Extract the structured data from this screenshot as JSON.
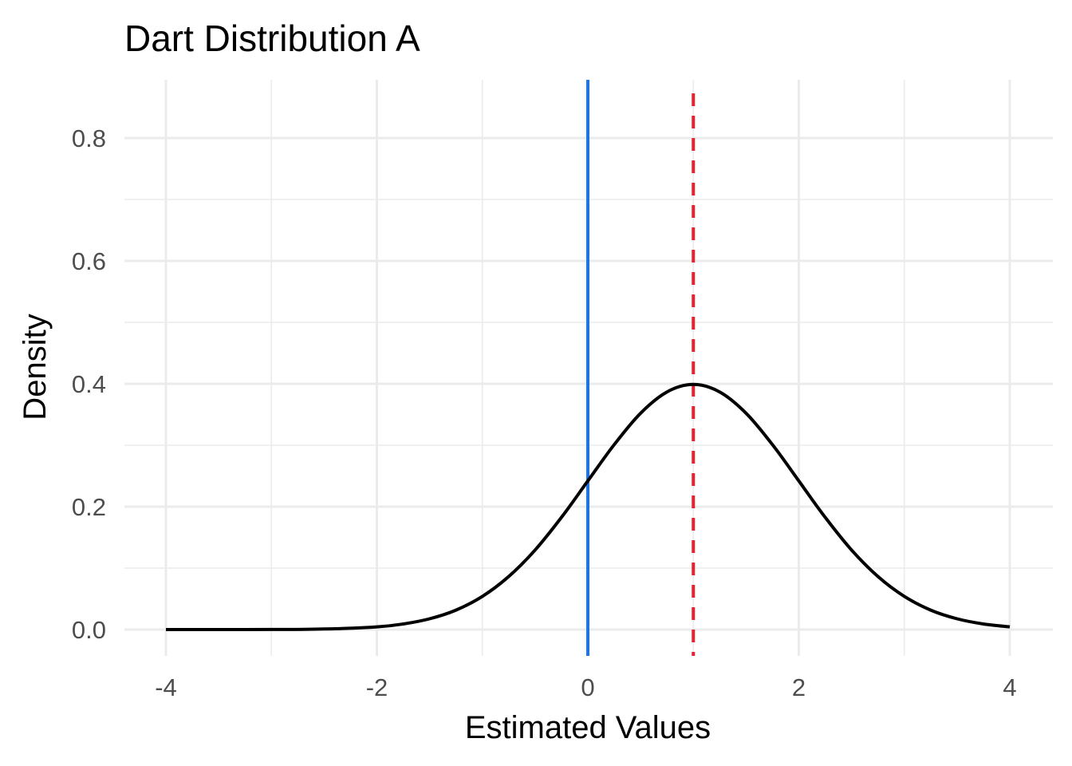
{
  "chart_data": {
    "type": "line",
    "title": "Dart Distribution A",
    "xlabel": "Estimated Values",
    "ylabel": "Density",
    "xlim": [
      -4,
      4
    ],
    "ylim": [
      0,
      0.8
    ],
    "x_ticks": [
      -4,
      -2,
      0,
      2,
      4
    ],
    "x_tick_labels": [
      "-4",
      "-2",
      "0",
      "2",
      "4"
    ],
    "x_minor_ticks": [
      -3,
      -1,
      1,
      3
    ],
    "y_ticks": [
      0,
      0.2,
      0.4,
      0.6,
      0.8
    ],
    "y_tick_labels": [
      "0.0",
      "0.2",
      "0.4",
      "0.6",
      "0.8"
    ],
    "y_minor_ticks": [
      0.1,
      0.3,
      0.5,
      0.7
    ],
    "grid": true,
    "series": [
      {
        "color": "#000000",
        "x": [
          -4,
          -3.5,
          -3,
          -2.5,
          -2,
          -1.75,
          -1.5,
          -1.25,
          -1,
          -0.75,
          -0.5,
          -0.25,
          0,
          0.25,
          0.5,
          0.75,
          1,
          1.25,
          1.5,
          1.75,
          2,
          2.25,
          2.5,
          2.75,
          3,
          3.25,
          3.5,
          3.75,
          4
        ],
        "y": [
          1e-06,
          2e-05,
          0.0001,
          0.0009,
          0.0044,
          0.0091,
          0.0175,
          0.0317,
          0.054,
          0.0863,
          0.1295,
          0.1826,
          0.242,
          0.3011,
          0.3521,
          0.3867,
          0.3989,
          0.3867,
          0.3521,
          0.3011,
          0.242,
          0.1826,
          0.1295,
          0.0863,
          0.054,
          0.0317,
          0.0175,
          0.0091,
          0.0044
        ]
      }
    ],
    "reference_lines": [
      {
        "x": 0,
        "color": "#1a75f0",
        "style": "solid"
      },
      {
        "x": 1,
        "color": "#e8202f",
        "style": "dashed"
      }
    ]
  }
}
